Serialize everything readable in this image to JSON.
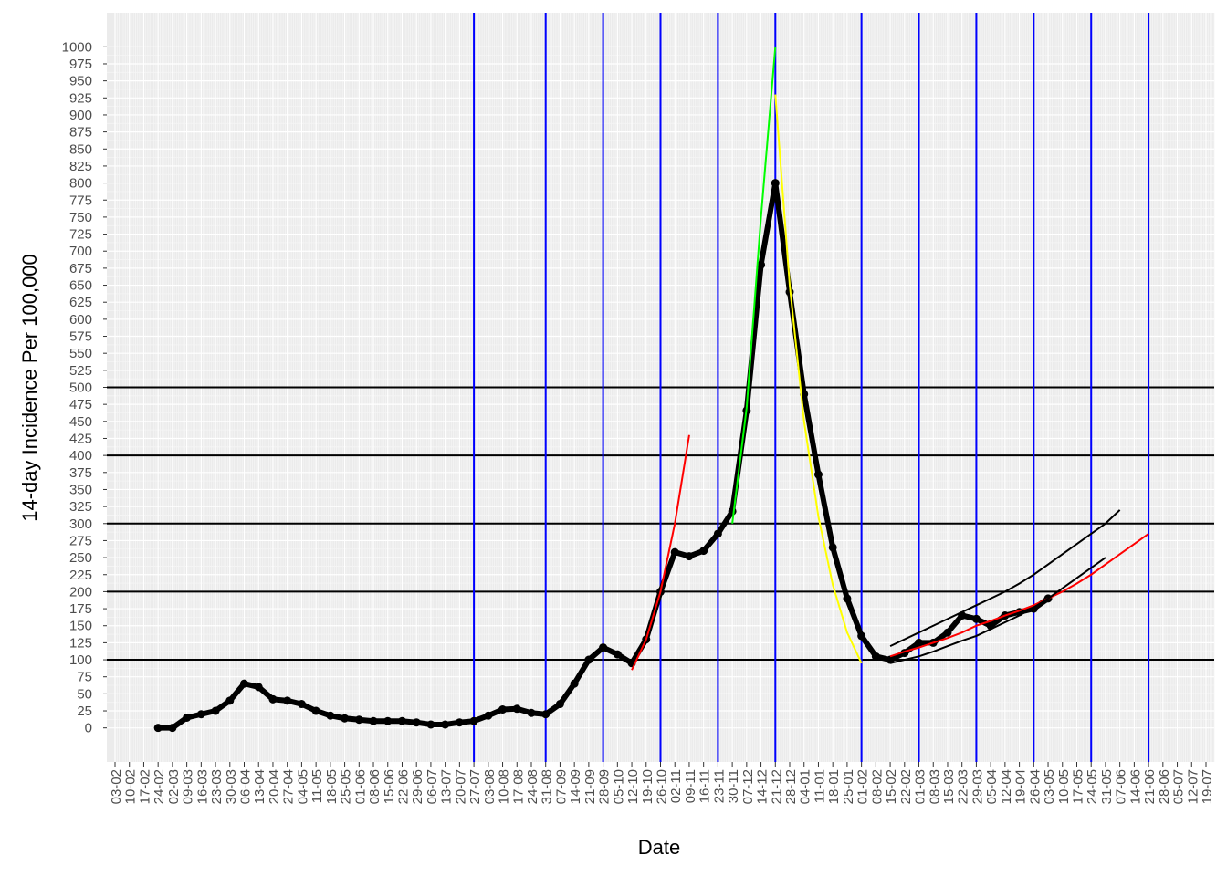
{
  "chart_data": {
    "type": "line",
    "x_label": "Date",
    "y_label": "14-day Incidence Per 100,000",
    "categories": [
      "03-02",
      "10-02",
      "17-02",
      "24-02",
      "02-03",
      "09-03",
      "16-03",
      "23-03",
      "30-03",
      "06-04",
      "13-04",
      "20-04",
      "27-04",
      "04-05",
      "11-05",
      "18-05",
      "25-05",
      "01-06",
      "08-06",
      "15-06",
      "22-06",
      "29-06",
      "06-07",
      "13-07",
      "20-07",
      "27-07",
      "03-08",
      "10-08",
      "17-08",
      "24-08",
      "31-08",
      "07-09",
      "14-09",
      "21-09",
      "28-09",
      "05-10",
      "12-10",
      "19-10",
      "26-10",
      "02-11",
      "09-11",
      "16-11",
      "23-11",
      "30-11",
      "07-12",
      "14-12",
      "21-12",
      "28-12",
      "04-01",
      "11-01",
      "18-01",
      "25-01",
      "01-02",
      "08-02",
      "15-02",
      "22-02",
      "01-03",
      "08-03",
      "15-03",
      "22-03",
      "29-03",
      "05-04",
      "12-04",
      "19-04",
      "26-04",
      "03-05",
      "10-05",
      "17-05",
      "24-05",
      "31-05",
      "07-06",
      "14-06",
      "21-06",
      "28-06",
      "05-07",
      "12-07",
      "19-07"
    ],
    "series": [
      {
        "color": "#000000",
        "style": "points",
        "values": [
          null,
          null,
          null,
          0,
          0,
          15,
          20,
          25,
          40,
          65,
          60,
          42,
          40,
          35,
          25,
          18,
          14,
          12,
          10,
          10,
          10,
          8,
          5,
          5,
          8,
          10,
          18,
          27,
          28,
          22,
          20,
          35,
          65,
          100,
          118,
          108,
          95,
          130,
          200,
          258,
          252,
          260,
          285,
          318,
          466,
          680,
          800,
          640,
          490,
          372,
          265,
          190,
          135,
          105,
          100,
          110,
          125,
          125,
          140,
          165,
          160,
          150,
          165,
          170,
          175,
          190,
          null,
          null,
          null,
          null,
          null,
          null,
          null,
          null,
          null,
          null,
          null
        ]
      },
      {
        "color": "#ff0000",
        "style": "line",
        "values": [
          null,
          null,
          null,
          null,
          null,
          null,
          null,
          null,
          null,
          null,
          null,
          null,
          null,
          null,
          null,
          null,
          null,
          null,
          null,
          null,
          null,
          null,
          null,
          null,
          null,
          null,
          null,
          null,
          null,
          null,
          null,
          null,
          null,
          null,
          null,
          null,
          85,
          130,
          200,
          300,
          430,
          null,
          null,
          null,
          null,
          null,
          null,
          null,
          null,
          null,
          null,
          null,
          null,
          null,
          null,
          null,
          null,
          null,
          null,
          null,
          null,
          null,
          null,
          null,
          null,
          null,
          null,
          null,
          null,
          null,
          null,
          null,
          null,
          null,
          null,
          null,
          null
        ]
      },
      {
        "color": "#00ff00",
        "style": "line",
        "values": [
          null,
          null,
          null,
          null,
          null,
          null,
          null,
          null,
          null,
          null,
          null,
          null,
          null,
          null,
          null,
          null,
          null,
          null,
          null,
          null,
          null,
          null,
          null,
          null,
          null,
          null,
          null,
          null,
          null,
          null,
          null,
          null,
          null,
          null,
          null,
          null,
          null,
          null,
          null,
          null,
          null,
          null,
          null,
          300,
          470,
          750,
          1000,
          null,
          null,
          null,
          null,
          null,
          null,
          null,
          null,
          null,
          null,
          null,
          null,
          null,
          null,
          null,
          null,
          null,
          null,
          null,
          null,
          null,
          null,
          null,
          null,
          null,
          null,
          null,
          null,
          null,
          null
        ]
      },
      {
        "color": "#ffff00",
        "style": "line",
        "values": [
          null,
          null,
          null,
          null,
          null,
          null,
          null,
          null,
          null,
          null,
          null,
          null,
          null,
          null,
          null,
          null,
          null,
          null,
          null,
          null,
          null,
          null,
          null,
          null,
          null,
          null,
          null,
          null,
          null,
          null,
          null,
          null,
          null,
          null,
          null,
          null,
          null,
          null,
          null,
          null,
          null,
          null,
          null,
          null,
          null,
          null,
          930,
          650,
          450,
          310,
          210,
          140,
          95,
          null,
          null,
          null,
          null,
          null,
          null,
          null,
          null,
          null,
          null,
          null,
          null,
          null,
          null,
          null,
          null,
          null,
          null,
          null,
          null,
          null,
          null,
          null,
          null
        ]
      },
      {
        "color": "#ff0000",
        "style": "line",
        "values": [
          null,
          null,
          null,
          null,
          null,
          null,
          null,
          null,
          null,
          null,
          null,
          null,
          null,
          null,
          null,
          null,
          null,
          null,
          null,
          null,
          null,
          null,
          null,
          null,
          null,
          null,
          null,
          null,
          null,
          null,
          null,
          null,
          null,
          null,
          null,
          null,
          null,
          null,
          null,
          null,
          null,
          null,
          null,
          null,
          null,
          null,
          null,
          null,
          null,
          null,
          null,
          null,
          null,
          null,
          105,
          112,
          118,
          125,
          132,
          140,
          150,
          157,
          165,
          172,
          180,
          190,
          200,
          212,
          225,
          240,
          255,
          270,
          285,
          null,
          null,
          null,
          null
        ]
      },
      {
        "color": "#000000",
        "style": "line",
        "values": [
          null,
          null,
          null,
          null,
          null,
          null,
          null,
          null,
          null,
          null,
          null,
          null,
          null,
          null,
          null,
          null,
          null,
          null,
          null,
          null,
          null,
          null,
          null,
          null,
          null,
          null,
          null,
          null,
          null,
          null,
          null,
          null,
          null,
          null,
          null,
          null,
          null,
          null,
          null,
          null,
          null,
          null,
          null,
          null,
          null,
          null,
          null,
          null,
          null,
          null,
          null,
          null,
          null,
          null,
          120,
          130,
          140,
          150,
          160,
          170,
          180,
          190,
          200,
          212,
          225,
          240,
          255,
          270,
          285,
          300,
          320,
          null,
          null,
          null,
          null,
          null,
          null
        ]
      },
      {
        "color": "#000000",
        "style": "line",
        "values": [
          null,
          null,
          null,
          null,
          null,
          null,
          null,
          null,
          null,
          null,
          null,
          null,
          null,
          null,
          null,
          null,
          null,
          null,
          null,
          null,
          null,
          null,
          null,
          null,
          null,
          null,
          null,
          null,
          null,
          null,
          null,
          null,
          null,
          null,
          null,
          null,
          null,
          null,
          null,
          null,
          null,
          null,
          null,
          null,
          null,
          null,
          null,
          null,
          null,
          null,
          null,
          null,
          null,
          null,
          95,
          100,
          105,
          112,
          120,
          128,
          135,
          145,
          155,
          165,
          177,
          190,
          205,
          220,
          235,
          250,
          null,
          null,
          null,
          null,
          null,
          null,
          null
        ]
      }
    ],
    "vlines": [
      "27-07",
      "31-08",
      "28-09",
      "26-10",
      "23-11",
      "21-12",
      "01-02",
      "01-03",
      "29-03",
      "26-04",
      "24-05",
      "21-06"
    ],
    "hlines": [
      100,
      200,
      300,
      400,
      500
    ],
    "vline_color": "#0000ff",
    "hline_color": "#000000",
    "ylim": [
      -50,
      1050
    ],
    "yticks": [
      0,
      25,
      50,
      75,
      100,
      125,
      150,
      175,
      200,
      225,
      250,
      275,
      300,
      325,
      350,
      375,
      400,
      425,
      450,
      475,
      500,
      525,
      550,
      575,
      600,
      625,
      650,
      675,
      700,
      725,
      750,
      775,
      800,
      825,
      850,
      875,
      900,
      925,
      950,
      975,
      1000
    ],
    "grid": true
  }
}
